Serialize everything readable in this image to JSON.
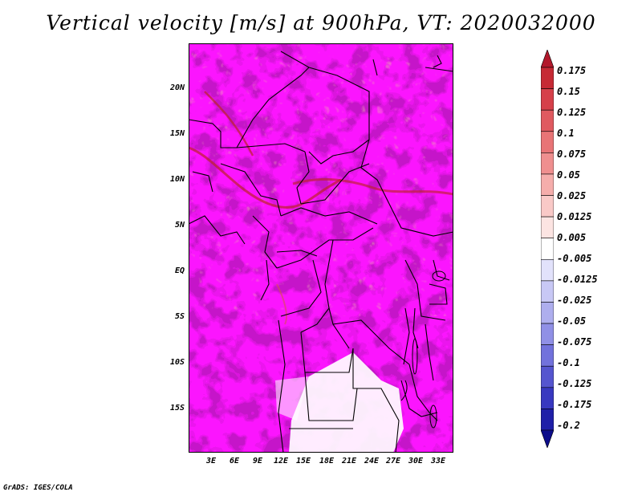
{
  "title": "Vertical velocity [m/s] at 900hPa, VT: 2020032000",
  "footer": "GrADS: IGES/COLA",
  "map": {
    "lat_labels": [
      "20N",
      "15N",
      "10N",
      "5N",
      "EQ",
      "5S",
      "10S",
      "15S"
    ],
    "lon_labels": [
      "3E",
      "6E",
      "9E",
      "12E",
      "15E",
      "18E",
      "21E",
      "24E",
      "27E",
      "30E",
      "33E"
    ]
  },
  "colorbar": {
    "levels": [
      "0.175",
      "0.15",
      "0.125",
      "0.1",
      "0.075",
      "0.05",
      "0.025",
      "0.0125",
      "0.005",
      "-0.005",
      "-0.0125",
      "-0.025",
      "-0.05",
      "-0.075",
      "-0.1",
      "-0.125",
      "-0.175",
      "-0.2"
    ],
    "colors": [
      "#b2182b",
      "#c62a35",
      "#d6404a",
      "#e05a60",
      "#e87476",
      "#ef8f8f",
      "#f5adab",
      "#f9c9c7",
      "#fce4e2",
      "#ffffff",
      "#e2e2fb",
      "#c8c8f5",
      "#aeaeee",
      "#9090e6",
      "#7272dc",
      "#5555cf",
      "#3838c0",
      "#1f1fa8",
      "#0c0c8a"
    ]
  }
}
